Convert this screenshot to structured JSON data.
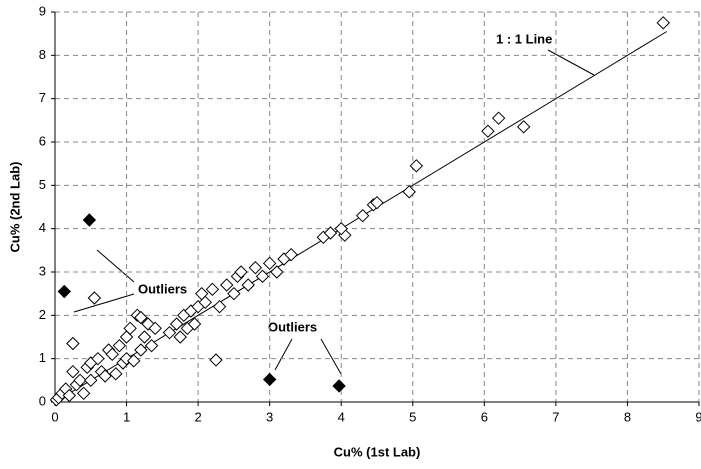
{
  "chart_data": {
    "type": "scatter",
    "x_label": "Cu% (1st Lab)",
    "y_label": "Cu% (2nd Lab)",
    "xlim": [
      0,
      9
    ],
    "ylim": [
      0,
      9
    ],
    "xticks": [
      0,
      1,
      2,
      3,
      4,
      5,
      6,
      7,
      8,
      9
    ],
    "yticks": [
      0,
      1,
      2,
      3,
      4,
      5,
      6,
      7,
      8,
      9
    ],
    "grid": true,
    "series": [
      {
        "color": "#000000",
        "marker": "open",
        "x": [
          0.02,
          0.05,
          0.1,
          0.15,
          0.2,
          0.25,
          0.25,
          0.3,
          0.35,
          0.4,
          0.45,
          0.5,
          0.5,
          0.55,
          0.6,
          0.65,
          0.7,
          0.75,
          0.8,
          0.85,
          0.9,
          0.95,
          1.0,
          1.0,
          1.05,
          1.1,
          1.15,
          1.2,
          1.2,
          1.25,
          1.3,
          1.35,
          1.4,
          1.6,
          1.7,
          1.75,
          1.8,
          1.85,
          1.9,
          1.95,
          2.0,
          2.05,
          2.1,
          2.2,
          2.25,
          2.3,
          2.4,
          2.5,
          2.55,
          2.6,
          2.7,
          2.8,
          2.9,
          3.0,
          3.1,
          3.2,
          3.3,
          3.75,
          3.85,
          4.05,
          4.0,
          4.3,
          4.45,
          4.5,
          4.95,
          5.05,
          6.05,
          6.2,
          6.55,
          8.5
        ],
        "values": [
          0.05,
          0.1,
          0.2,
          0.3,
          0.15,
          0.7,
          1.35,
          0.4,
          0.5,
          0.2,
          0.8,
          0.5,
          0.9,
          2.4,
          1.0,
          0.7,
          0.6,
          1.2,
          1.1,
          0.65,
          1.3,
          0.9,
          1.5,
          1.0,
          1.7,
          0.95,
          2.0,
          1.2,
          1.95,
          1.5,
          1.8,
          1.3,
          1.7,
          1.6,
          1.8,
          1.5,
          2.0,
          1.7,
          2.1,
          1.8,
          2.2,
          2.5,
          2.3,
          2.6,
          0.97,
          2.2,
          2.7,
          2.5,
          2.9,
          3.0,
          2.7,
          3.1,
          2.9,
          3.2,
          3.0,
          3.3,
          3.4,
          3.8,
          3.9,
          3.85,
          4.0,
          4.3,
          4.55,
          4.6,
          4.85,
          5.45,
          6.25,
          6.55,
          6.35,
          8.75
        ]
      },
      {
        "color": "#000000",
        "marker": "filled",
        "x": [
          0.48,
          0.13,
          3.0,
          3.97
        ],
        "values": [
          4.2,
          2.55,
          0.52,
          0.37
        ]
      }
    ],
    "reference_line": {
      "x": [
        0,
        8.55
      ],
      "values": [
        0,
        8.55
      ]
    },
    "annotations": [
      "1 : 1 Line",
      "Outliers",
      "Outliers"
    ]
  }
}
